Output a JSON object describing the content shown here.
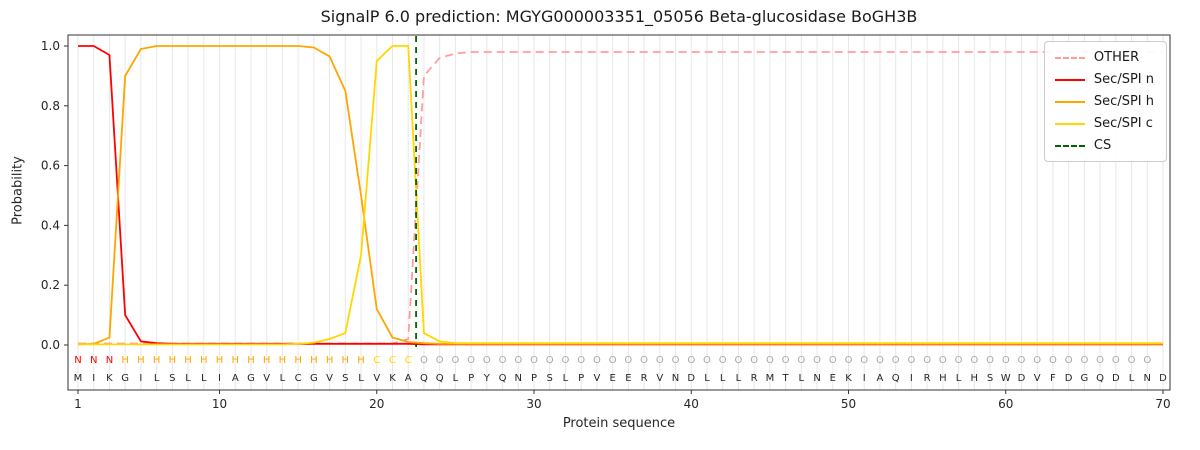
{
  "chart_data": {
    "type": "line",
    "title": "SignalP 6.0 prediction: MGYG000003351_05056 Beta-glucosidase BoGH3B",
    "xlabel": "Protein sequence",
    "ylabel": "Probability",
    "xticks": [
      1,
      10,
      20,
      30,
      40,
      50,
      60,
      70
    ],
    "yticks": [
      0.0,
      0.2,
      0.4,
      0.6,
      0.8,
      1.0
    ],
    "xlim": [
      0.4,
      70.6
    ],
    "ylim": [
      0,
      1.04
    ],
    "grid": "vertical line at every residue position",
    "legend_position": "upper right",
    "sequence": "MIKGILSLLIAGVLCGVSLVKAQQLPYQNPSLPVEERVNDLLLRMTLNEKIAQIRHLHSWDVFDGQDLND",
    "region_labels": "NNNHHHHHHHHHHHHHHHHCCCOOOOOOOOOOOOOOOOOOOOOOOOOOOOOOOOOOOOOOOOOOOOOOO",
    "cs_position": 22.5,
    "colors": {
      "grid": "#e7e7e7",
      "axis": "#333333",
      "text": "#262626",
      "region": {
        "N": "#ff0000",
        "H": "#ffa500",
        "C": "#ffd700",
        "O": "#a8a8a8"
      }
    },
    "series": [
      {
        "name": "OTHER",
        "color": "#ff9d9d",
        "dash": true,
        "values": [
          0.005,
          0.005,
          0.005,
          0.005,
          0.005,
          0.005,
          0.005,
          0.005,
          0.005,
          0.005,
          0.005,
          0.005,
          0.005,
          0.005,
          0.005,
          0.005,
          0.005,
          0.005,
          0.005,
          0.005,
          0.005,
          0.02,
          0.9,
          0.96,
          0.975,
          0.98,
          0.98,
          0.98,
          0.98,
          0.98,
          0.98,
          0.98,
          0.98,
          0.98,
          0.98,
          0.98,
          0.98,
          0.98,
          0.98,
          0.98,
          0.98,
          0.98,
          0.98,
          0.98,
          0.98,
          0.98,
          0.98,
          0.98,
          0.98,
          0.98,
          0.98,
          0.98,
          0.98,
          0.98,
          0.98,
          0.98,
          0.98,
          0.98,
          0.98,
          0.98,
          0.98,
          0.98,
          0.98,
          0.98,
          0.98,
          0.98,
          0.98,
          0.98,
          0.98,
          0.98
        ]
      },
      {
        "name": "Sec/SPI n",
        "color": "#ff0000",
        "dash": false,
        "values": [
          1.0,
          1.0,
          0.97,
          0.1,
          0.012,
          0.006,
          0.004,
          0.004,
          0.004,
          0.004,
          0.004,
          0.004,
          0.004,
          0.004,
          0.004,
          0.004,
          0.004,
          0.004,
          0.004,
          0.004,
          0.004,
          0.004,
          0.002,
          0.002,
          0.002,
          0.002,
          0.002,
          0.002,
          0.002,
          0.002,
          0.002,
          0.002,
          0.002,
          0.002,
          0.002,
          0.002,
          0.002,
          0.002,
          0.002,
          0.002,
          0.002,
          0.002,
          0.002,
          0.002,
          0.002,
          0.002,
          0.002,
          0.002,
          0.002,
          0.002,
          0.002,
          0.002,
          0.002,
          0.002,
          0.002,
          0.002,
          0.002,
          0.002,
          0.002,
          0.002,
          0.002,
          0.002,
          0.002,
          0.002,
          0.002,
          0.002,
          0.002,
          0.002,
          0.002,
          0.002
        ]
      },
      {
        "name": "Sec/SPI h",
        "color": "#ffa500",
        "dash": false,
        "values": [
          0.002,
          0.004,
          0.025,
          0.9,
          0.99,
          1.0,
          1.0,
          1.0,
          1.0,
          1.0,
          1.0,
          1.0,
          1.0,
          1.0,
          1.0,
          0.995,
          0.965,
          0.85,
          0.5,
          0.12,
          0.025,
          0.01,
          0.006,
          0.004,
          0.004,
          0.004,
          0.004,
          0.004,
          0.004,
          0.004,
          0.004,
          0.004,
          0.004,
          0.004,
          0.004,
          0.004,
          0.004,
          0.004,
          0.004,
          0.004,
          0.004,
          0.004,
          0.004,
          0.004,
          0.004,
          0.004,
          0.004,
          0.004,
          0.004,
          0.004,
          0.004,
          0.004,
          0.004,
          0.004,
          0.004,
          0.004,
          0.004,
          0.004,
          0.004,
          0.004,
          0.004,
          0.004,
          0.004,
          0.004,
          0.004,
          0.004,
          0.004,
          0.004,
          0.004,
          0.004
        ]
      },
      {
        "name": "Sec/SPI c",
        "color": "#ffd700",
        "dash": false,
        "values": [
          0.002,
          0.002,
          0.002,
          0.002,
          0.002,
          0.002,
          0.002,
          0.002,
          0.002,
          0.002,
          0.002,
          0.002,
          0.002,
          0.002,
          0.004,
          0.008,
          0.02,
          0.04,
          0.3,
          0.95,
          1.0,
          1.0,
          0.04,
          0.012,
          0.006,
          0.006,
          0.006,
          0.006,
          0.006,
          0.006,
          0.006,
          0.006,
          0.006,
          0.006,
          0.006,
          0.006,
          0.006,
          0.006,
          0.006,
          0.006,
          0.006,
          0.006,
          0.006,
          0.006,
          0.006,
          0.006,
          0.006,
          0.006,
          0.006,
          0.006,
          0.006,
          0.006,
          0.006,
          0.006,
          0.006,
          0.006,
          0.006,
          0.006,
          0.006,
          0.006,
          0.006,
          0.006,
          0.006,
          0.006,
          0.006,
          0.006,
          0.006,
          0.006,
          0.006,
          0.006
        ]
      },
      {
        "name": "CS",
        "color": "#006400",
        "dash": true,
        "type": "vline",
        "x": 22.5
      }
    ]
  }
}
